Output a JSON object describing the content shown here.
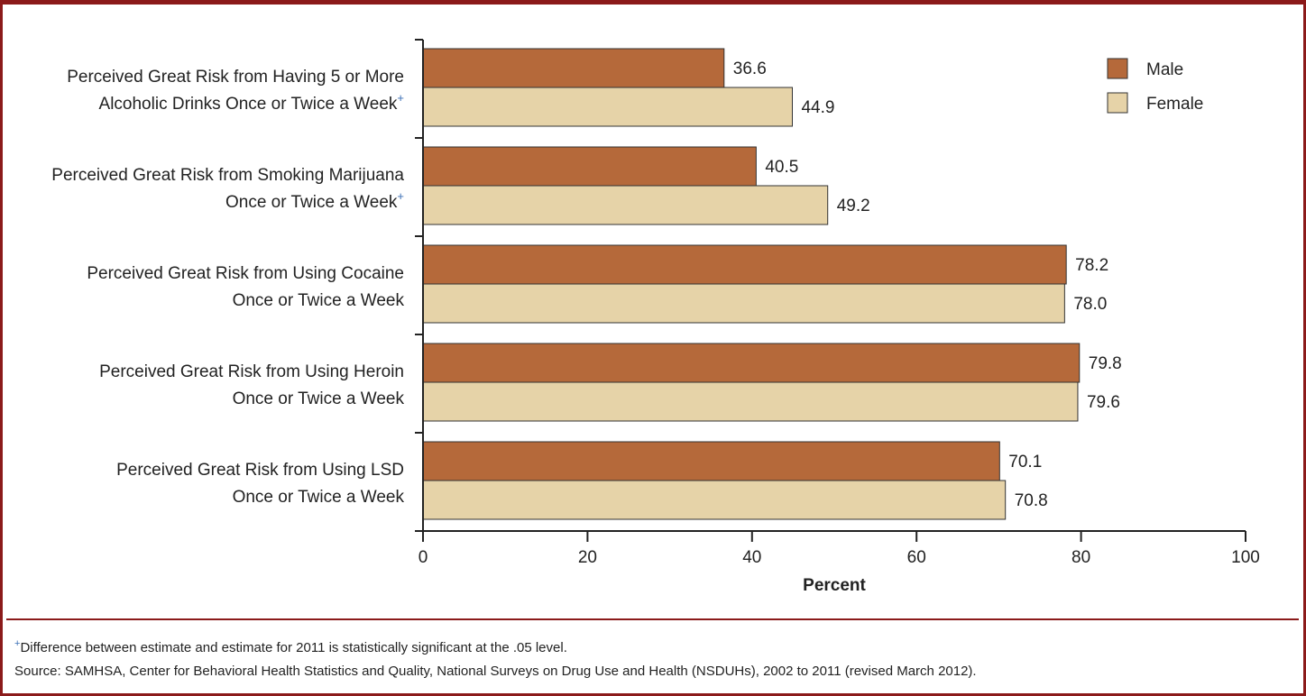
{
  "colors": {
    "male": "#b5693a",
    "female": "#e6d3a8",
    "border": "#8b1a1a",
    "significance_marker": "#3b6fb6"
  },
  "chart_data": {
    "type": "bar",
    "orientation": "horizontal",
    "categories": [
      {
        "lines": [
          "Perceived Great Risk from Having 5 or More",
          "Alcoholic Drinks Once or Twice a Week"
        ],
        "significant": true
      },
      {
        "lines": [
          "Perceived Great Risk from Smoking Marijuana",
          "Once or Twice a Week"
        ],
        "significant": true
      },
      {
        "lines": [
          "Perceived Great Risk from Using Cocaine",
          "Once or Twice a Week"
        ],
        "significant": false
      },
      {
        "lines": [
          "Perceived Great Risk from Using Heroin",
          "Once or Twice a Week"
        ],
        "significant": false
      },
      {
        "lines": [
          "Perceived Great Risk from Using LSD",
          "Once or Twice a Week"
        ],
        "significant": false
      }
    ],
    "series": [
      {
        "name": "Male",
        "values": [
          36.6,
          40.5,
          78.2,
          79.8,
          70.1
        ],
        "labels": [
          "36.6",
          "40.5",
          "78.2",
          "79.8",
          "70.1"
        ]
      },
      {
        "name": "Female",
        "values": [
          44.9,
          49.2,
          78.0,
          79.6,
          70.8
        ],
        "labels": [
          "44.9",
          "49.2",
          "78.0",
          "79.6",
          "70.8"
        ]
      }
    ],
    "xlabel": "Percent",
    "xlim": [
      0,
      100
    ],
    "xticks": [
      "0",
      "20",
      "40",
      "60",
      "80",
      "100"
    ],
    "significance_symbol": "+",
    "grid": false,
    "legend_position": "top-right"
  },
  "footnotes": {
    "marker": "+",
    "significance": "Difference between estimate and estimate for 2011 is statistically significant at the .05 level.",
    "source": "Source: SAMHSA, Center for Behavioral Health Statistics and Quality, National Surveys on Drug Use and Health (NSDUHs), 2002 to 2011 (revised March 2012)."
  }
}
